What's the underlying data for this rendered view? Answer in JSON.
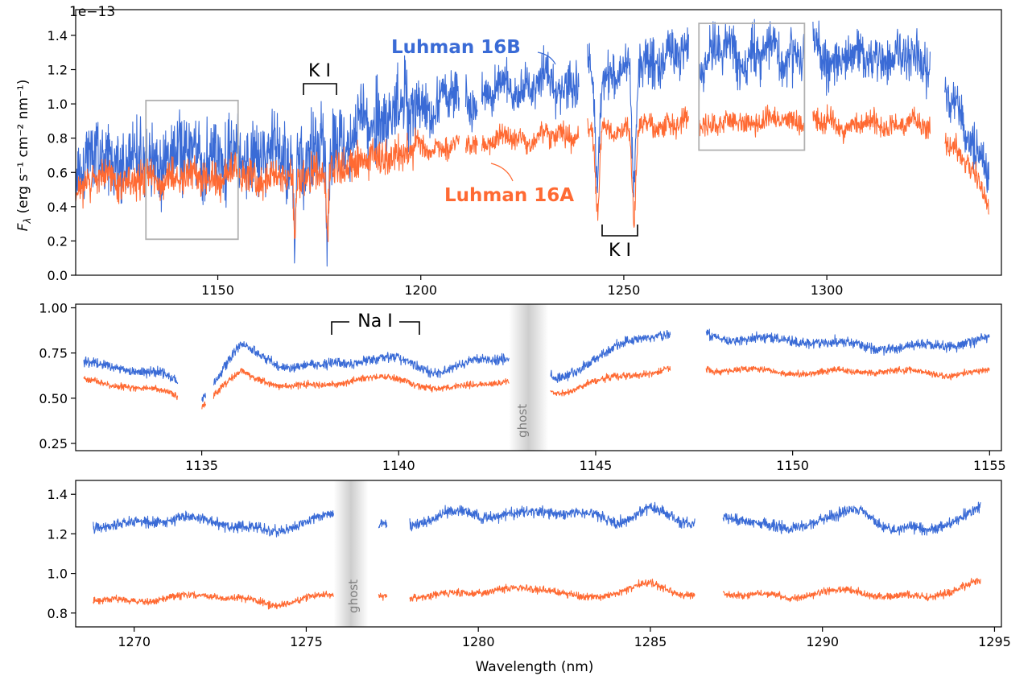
{
  "figure": {
    "xlabel": "Wavelength (nm)",
    "ylabel_main": "F",
    "ylabel_sub": "λ",
    "ylabel_units": "(erg s⁻¹ cm⁻² nm⁻¹)",
    "offset_text": "1e−13"
  },
  "colors": {
    "16B": "#3a6bd6",
    "16A": "#ff6a33",
    "box": "#b0b0b0",
    "ghost": "#9a9a9a"
  },
  "chart_data": [
    {
      "type": "line",
      "panel": "top",
      "xlim": [
        1115,
        1343
      ],
      "ylim": [
        0.0,
        1.55
      ],
      "y_scale_offset": "1e-13",
      "xticks": [
        1150,
        1200,
        1250,
        1300
      ],
      "yticks": [
        "0.0",
        "0.2",
        "0.4",
        "0.6",
        "0.8",
        "1.0",
        "1.2",
        "1.4"
      ],
      "yticks_values": [
        0.0,
        0.2,
        0.4,
        0.6,
        0.8,
        1.0,
        1.2,
        1.4
      ],
      "series": [
        {
          "name": "Luhman 16B",
          "color": "#3a6bd6",
          "x": [
            1115,
            1120,
            1125,
            1130,
            1135,
            1140,
            1145,
            1150,
            1155,
            1160,
            1165,
            1170,
            1175,
            1180,
            1185,
            1190,
            1195,
            1200,
            1205,
            1210,
            1215,
            1220,
            1225,
            1230,
            1235,
            1240,
            1245,
            1250,
            1255,
            1260,
            1265,
            1270,
            1275,
            1280,
            1285,
            1290,
            1295,
            1300,
            1305,
            1310,
            1315,
            1320,
            1325,
            1330,
            1335,
            1340
          ],
          "y": [
            0.6,
            0.7,
            0.68,
            0.67,
            0.68,
            0.69,
            0.7,
            0.7,
            0.7,
            0.69,
            0.68,
            0.7,
            0.72,
            0.78,
            0.85,
            0.9,
            0.95,
            0.98,
            1.02,
            1.05,
            1.05,
            1.08,
            1.1,
            1.12,
            1.13,
            1.14,
            1.16,
            1.2,
            1.24,
            1.27,
            1.29,
            1.27,
            1.29,
            1.29,
            1.29,
            1.29,
            1.3,
            1.28,
            1.27,
            1.26,
            1.27,
            1.27,
            1.28,
            1.05,
            0.85,
            0.55
          ]
        },
        {
          "name": "Luhman 16A",
          "color": "#ff6a33",
          "x": [
            1115,
            1120,
            1125,
            1130,
            1135,
            1140,
            1145,
            1150,
            1155,
            1160,
            1165,
            1170,
            1175,
            1180,
            1185,
            1190,
            1195,
            1200,
            1205,
            1210,
            1215,
            1220,
            1225,
            1230,
            1235,
            1240,
            1245,
            1250,
            1255,
            1260,
            1265,
            1270,
            1275,
            1280,
            1285,
            1290,
            1295,
            1300,
            1305,
            1310,
            1315,
            1320,
            1325,
            1330,
            1335,
            1340
          ],
          "y": [
            0.5,
            0.56,
            0.56,
            0.55,
            0.56,
            0.57,
            0.57,
            0.58,
            0.58,
            0.57,
            0.57,
            0.58,
            0.6,
            0.63,
            0.66,
            0.69,
            0.71,
            0.73,
            0.75,
            0.76,
            0.77,
            0.79,
            0.8,
            0.81,
            0.82,
            0.83,
            0.84,
            0.86,
            0.87,
            0.88,
            0.89,
            0.88,
            0.89,
            0.9,
            0.9,
            0.9,
            0.91,
            0.89,
            0.88,
            0.88,
            0.88,
            0.88,
            0.89,
            0.75,
            0.65,
            0.42
          ]
        }
      ],
      "gaps": [
        [
          1209.5,
          1211.0
        ],
        [
          1214.0,
          1215.0
        ],
        [
          1239.0,
          1241.0
        ],
        [
          1266.0,
          1268.5
        ],
        [
          1294.5,
          1296.5
        ],
        [
          1325.5,
          1329.0
        ]
      ],
      "absorption": [
        {
          "x": 1169.0,
          "depth": 0.45,
          "width": 0.4
        },
        {
          "x": 1177.0,
          "depth": 0.48,
          "width": 0.4
        },
        {
          "x": 1243.5,
          "depth": 0.62,
          "width": 0.7
        },
        {
          "x": 1252.5,
          "depth": 0.72,
          "width": 0.7
        }
      ],
      "annotations": [
        {
          "text": "K I",
          "bracket": [
            1169,
            1177
          ],
          "side": "above"
        },
        {
          "text": "K I",
          "bracket": [
            1243.5,
            1252.5
          ],
          "side": "below"
        },
        {
          "text": "Luhman 16B",
          "color": "#3a6bd6",
          "kind": "series-label"
        },
        {
          "text": "Luhman 16A",
          "color": "#ff6a33",
          "kind": "series-label"
        }
      ],
      "zoom_boxes": [
        {
          "x": [
            1132.3,
            1155.0
          ],
          "y": [
            0.21,
            1.02
          ]
        },
        {
          "x": [
            1268.5,
            1294.5
          ],
          "y": [
            0.73,
            1.47
          ]
        }
      ]
    },
    {
      "type": "line",
      "panel": "middle",
      "xlim": [
        1131.8,
        1155.3
      ],
      "ylim": [
        0.21,
        1.02
      ],
      "xticks": [
        1135,
        1140,
        1145,
        1150,
        1155
      ],
      "yticks": [
        "0.25",
        "0.50",
        "0.75",
        "1.00"
      ],
      "yticks_values": [
        0.25,
        0.5,
        0.75,
        1.0
      ],
      "series": [
        {
          "name": "Luhman 16B",
          "color": "#3a6bd6",
          "x": [
            1132,
            1133,
            1134,
            1135,
            1136,
            1137,
            1138,
            1139,
            1140,
            1141,
            1142,
            1143,
            1144,
            1145,
            1146,
            1147,
            1148,
            1149,
            1150,
            1151,
            1152,
            1153,
            1154,
            1155
          ],
          "y": [
            0.7,
            0.68,
            0.62,
            0.5,
            0.8,
            0.7,
            0.66,
            0.7,
            0.72,
            0.66,
            0.7,
            0.72,
            0.6,
            0.74,
            0.82,
            0.86,
            0.84,
            0.84,
            0.82,
            0.79,
            0.78,
            0.8,
            0.8,
            0.82
          ]
        },
        {
          "name": "Luhman 16A",
          "color": "#ff6a33",
          "x": [
            1132,
            1133,
            1134,
            1135,
            1136,
            1137,
            1138,
            1139,
            1140,
            1141,
            1142,
            1143,
            1144,
            1145,
            1146,
            1147,
            1148,
            1149,
            1150,
            1151,
            1152,
            1153,
            1154,
            1155
          ],
          "y": [
            0.6,
            0.58,
            0.54,
            0.45,
            0.64,
            0.58,
            0.57,
            0.6,
            0.6,
            0.56,
            0.58,
            0.6,
            0.52,
            0.6,
            0.64,
            0.66,
            0.65,
            0.66,
            0.65,
            0.64,
            0.64,
            0.65,
            0.64,
            0.65
          ]
        }
      ],
      "gaps": [
        [
          1134.4,
          1135.0
        ],
        [
          1135.1,
          1135.3
        ],
        [
          1142.8,
          1143.85
        ],
        [
          1146.9,
          1147.8
        ]
      ],
      "ghost": {
        "x": [
          1142.8,
          1143.8
        ],
        "label": "ghost"
      },
      "annotations": [
        {
          "text": "Na I",
          "bracket": [
            1138.5,
            1140.8
          ],
          "side": "above"
        }
      ]
    },
    {
      "type": "line",
      "panel": "bottom",
      "xlim": [
        1268.3,
        1295.2
      ],
      "ylim": [
        0.73,
        1.47
      ],
      "xticks": [
        1270,
        1275,
        1280,
        1285,
        1290,
        1295
      ],
      "yticks": [
        "0.8",
        "1.0",
        "1.2",
        "1.4"
      ],
      "yticks_values": [
        0.8,
        1.0,
        1.2,
        1.4
      ],
      "series": [
        {
          "name": "Luhman 16B",
          "color": "#3a6bd6",
          "x": [
            1268.8,
            1270,
            1271,
            1272,
            1273,
            1274,
            1275,
            1276,
            1277,
            1278,
            1279,
            1280,
            1281,
            1282,
            1283,
            1284,
            1285,
            1286,
            1287,
            1288,
            1289,
            1290,
            1291,
            1292,
            1293,
            1294,
            1294.6
          ],
          "y": [
            1.25,
            1.26,
            1.27,
            1.26,
            1.25,
            1.22,
            1.26,
            1.27,
            1.24,
            1.26,
            1.3,
            1.28,
            1.3,
            1.33,
            1.3,
            1.25,
            1.32,
            1.28,
            1.27,
            1.26,
            1.2,
            1.3,
            1.32,
            1.22,
            1.2,
            1.3,
            1.34
          ]
        },
        {
          "name": "Luhman 16A",
          "color": "#ff6a33",
          "x": [
            1268.8,
            1270,
            1271,
            1272,
            1273,
            1274,
            1275,
            1276,
            1277,
            1278,
            1279,
            1280,
            1281,
            1282,
            1283,
            1284,
            1285,
            1286,
            1287,
            1288,
            1289,
            1290,
            1291,
            1292,
            1293,
            1294,
            1294.6
          ],
          "y": [
            0.86,
            0.87,
            0.88,
            0.88,
            0.87,
            0.85,
            0.88,
            0.89,
            0.87,
            0.89,
            0.9,
            0.9,
            0.91,
            0.93,
            0.88,
            0.9,
            0.94,
            0.9,
            0.9,
            0.9,
            0.86,
            0.91,
            0.92,
            0.88,
            0.87,
            0.92,
            0.97
          ]
        }
      ],
      "gaps": [
        [
          1275.8,
          1277.1
        ],
        [
          1277.35,
          1278.0
        ],
        [
          1286.3,
          1287.1
        ]
      ],
      "ghost": {
        "x": [
          1275.8,
          1276.8
        ],
        "label": "ghost"
      }
    }
  ]
}
